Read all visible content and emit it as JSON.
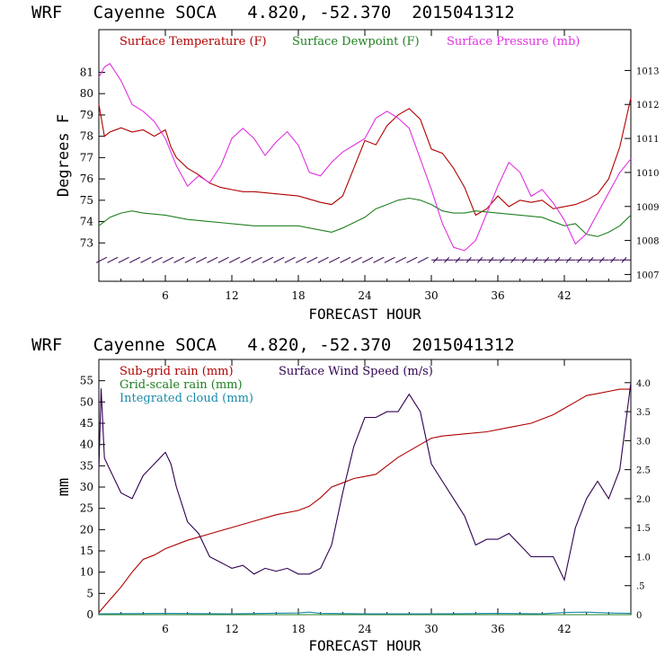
{
  "colors": {
    "temperature": "#b00000",
    "dewpoint": "#208020",
    "pressure": "#e030e0",
    "wind": "#300050",
    "subgrid": "#b00000",
    "gridscale": "#208020",
    "cloud": "#1a8aa8"
  },
  "chart_data": [
    {
      "type": "line",
      "title": "WRF   Cayenne SOCA   4.820, -52.370  2015041312",
      "xlabel": "FORECAST HOUR",
      "ylabel": "Degrees F",
      "xlim": [
        0,
        48
      ],
      "ylim": [
        71.2,
        83
      ],
      "y2lim": [
        1006.8,
        1014.2
      ],
      "xticks": [
        "6",
        "12",
        "18",
        "24",
        "30",
        "36",
        "42"
      ],
      "yticks": [
        "73",
        "74",
        "75",
        "76",
        "77",
        "78",
        "79",
        "80",
        "81"
      ],
      "y2ticks": [
        "1007",
        "1008",
        "1009",
        "1010",
        "1011",
        "1012",
        "1013"
      ],
      "wind_barb_level": 72.2,
      "series": [
        {
          "name": "Surface Temperature (F)",
          "axis": "left",
          "color_key": "temperature",
          "x": [
            0,
            0.5,
            1,
            2,
            3,
            4,
            5,
            6,
            6.5,
            7,
            8,
            9,
            10,
            11,
            12,
            13,
            14,
            16,
            18,
            20,
            21,
            22,
            23,
            24,
            25,
            26,
            27,
            28,
            29,
            30,
            31,
            32,
            33,
            34,
            35,
            36,
            37,
            38,
            39,
            40,
            41,
            42,
            43,
            44,
            45,
            46,
            47,
            48
          ],
          "values": [
            79.5,
            78.0,
            78.2,
            78.4,
            78.2,
            78.3,
            78.0,
            78.3,
            77.5,
            77.0,
            76.5,
            76.2,
            75.8,
            75.6,
            75.5,
            75.4,
            75.4,
            75.3,
            75.2,
            74.9,
            74.8,
            75.2,
            76.5,
            77.8,
            77.6,
            78.5,
            79.0,
            79.3,
            78.8,
            77.4,
            77.2,
            76.5,
            75.6,
            74.3,
            74.6,
            75.2,
            74.7,
            75.0,
            74.9,
            75.0,
            74.6,
            74.7,
            74.8,
            75.0,
            75.3,
            76.0,
            77.5,
            79.8
          ]
        },
        {
          "name": "Surface Dewpoint (F)",
          "axis": "left",
          "color_key": "dewpoint",
          "x": [
            0,
            1,
            2,
            3,
            4,
            6,
            8,
            10,
            12,
            14,
            16,
            18,
            20,
            21,
            22,
            24,
            25,
            26,
            27,
            28,
            29,
            30,
            31,
            32,
            33,
            34,
            36,
            38,
            40,
            42,
            43,
            44,
            45,
            46,
            47,
            48
          ],
          "values": [
            73.8,
            74.2,
            74.4,
            74.5,
            74.4,
            74.3,
            74.1,
            74.0,
            73.9,
            73.8,
            73.8,
            73.8,
            73.6,
            73.5,
            73.7,
            74.2,
            74.6,
            74.8,
            75.0,
            75.1,
            75.0,
            74.8,
            74.5,
            74.4,
            74.4,
            74.5,
            74.4,
            74.3,
            74.2,
            73.8,
            73.9,
            73.4,
            73.3,
            73.5,
            73.8,
            74.3
          ]
        },
        {
          "name": "Surface Pressure (mb)",
          "axis": "right",
          "color_key": "pressure",
          "x": [
            0,
            0.5,
            1,
            2,
            3,
            4,
            5,
            6,
            7,
            8,
            9,
            10,
            11,
            12,
            13,
            14,
            15,
            16,
            17,
            18,
            19,
            20,
            21,
            22,
            23,
            24,
            25,
            26,
            27,
            28,
            29,
            30,
            31,
            32,
            33,
            34,
            35,
            36,
            37,
            38,
            39,
            40,
            41,
            42,
            43,
            44,
            45,
            46,
            47,
            48
          ],
          "values": [
            1012.8,
            1013.1,
            1013.2,
            1012.7,
            1012.0,
            1011.8,
            1011.5,
            1011.0,
            1010.2,
            1009.6,
            1009.9,
            1009.7,
            1010.2,
            1011.0,
            1011.3,
            1011.0,
            1010.5,
            1010.9,
            1011.2,
            1010.8,
            1010.0,
            1009.9,
            1010.3,
            1010.6,
            1010.8,
            1011.0,
            1011.6,
            1011.8,
            1011.6,
            1011.3,
            1010.4,
            1009.5,
            1008.5,
            1007.8,
            1007.7,
            1008.0,
            1008.8,
            1009.6,
            1010.3,
            1010.0,
            1009.3,
            1009.5,
            1009.1,
            1008.6,
            1007.9,
            1008.2,
            1008.8,
            1009.4,
            1010.0,
            1010.4
          ]
        }
      ]
    },
    {
      "type": "line",
      "title": "WRF   Cayenne SOCA   4.820, -52.370  2015041312",
      "xlabel": "FORECAST HOUR",
      "ylabel": "mm",
      "xlim": [
        0,
        48
      ],
      "ylim": [
        0,
        60
      ],
      "y2lim": [
        0,
        4.4
      ],
      "xticks": [
        "6",
        "12",
        "18",
        "24",
        "30",
        "36",
        "42"
      ],
      "yticks": [
        "0",
        "5",
        "10",
        "15",
        "20",
        "25",
        "30",
        "35",
        "40",
        "45",
        "50",
        "55"
      ],
      "y2ticks": [
        "0",
        ".5",
        "1.0",
        "1.5",
        "2.0",
        "2.5",
        "3.0",
        "3.5",
        "4.0"
      ],
      "series": [
        {
          "name": "Sub-grid rain (mm)",
          "axis": "left",
          "color_key": "subgrid",
          "x": [
            0,
            1,
            2,
            3,
            4,
            5,
            6,
            8,
            10,
            12,
            14,
            16,
            18,
            19,
            20,
            21,
            22,
            23,
            24,
            25,
            26,
            27,
            28,
            29,
            30,
            31,
            33,
            35,
            37,
            39,
            41,
            42,
            43,
            44,
            45,
            46,
            47,
            48
          ],
          "values": [
            0.5,
            3.5,
            6.5,
            10,
            13,
            14,
            15.5,
            17.5,
            19,
            20.5,
            22,
            23.5,
            24.5,
            25.5,
            27.5,
            30,
            31,
            32,
            32.5,
            33,
            35,
            37,
            38.5,
            40,
            41.5,
            42,
            42.5,
            43,
            44,
            45,
            47,
            48.5,
            50,
            51.5,
            52,
            52.5,
            53,
            53
          ]
        },
        {
          "name": "Grid-scale rain (mm)",
          "axis": "left",
          "color_key": "gridscale",
          "x": [
            0,
            48
          ],
          "values": [
            0,
            0
          ]
        },
        {
          "name": "Integrated cloud (mm)",
          "axis": "left",
          "color_key": "cloud",
          "x": [
            0,
            6,
            12,
            18,
            19,
            20,
            24,
            30,
            36,
            40,
            42,
            44,
            46,
            48
          ],
          "values": [
            0.2,
            0.3,
            0.2,
            0.4,
            0.6,
            0.3,
            0.2,
            0.2,
            0.3,
            0.2,
            0.5,
            0.6,
            0.4,
            0.3
          ]
        },
        {
          "name": "Surface Wind Speed (m/s)",
          "axis": "right",
          "color_key": "wind",
          "x": [
            0,
            0.2,
            0.5,
            1,
            2,
            3,
            4,
            5,
            6,
            6.5,
            7,
            8,
            9,
            10,
            11,
            12,
            13,
            14,
            15,
            16,
            17,
            18,
            19,
            20,
            21,
            22,
            23,
            24,
            25,
            26,
            27,
            28,
            29,
            30,
            31,
            32,
            33,
            34,
            35,
            36,
            37,
            38,
            39,
            40,
            41,
            42,
            43,
            44,
            45,
            46,
            47,
            48
          ],
          "values": [
            2.5,
            3.9,
            2.7,
            2.5,
            2.1,
            2.0,
            2.4,
            2.6,
            2.8,
            2.6,
            2.2,
            1.6,
            1.4,
            1.0,
            0.9,
            0.8,
            0.85,
            0.7,
            0.8,
            0.75,
            0.8,
            0.7,
            0.7,
            0.8,
            1.2,
            2.1,
            2.9,
            3.4,
            3.4,
            3.5,
            3.5,
            3.8,
            3.5,
            2.6,
            2.3,
            2.0,
            1.7,
            1.2,
            1.3,
            1.3,
            1.4,
            1.2,
            1.0,
            1.0,
            1.0,
            0.6,
            1.5,
            2.0,
            2.3,
            2.0,
            2.5,
            4.0
          ]
        }
      ]
    }
  ]
}
